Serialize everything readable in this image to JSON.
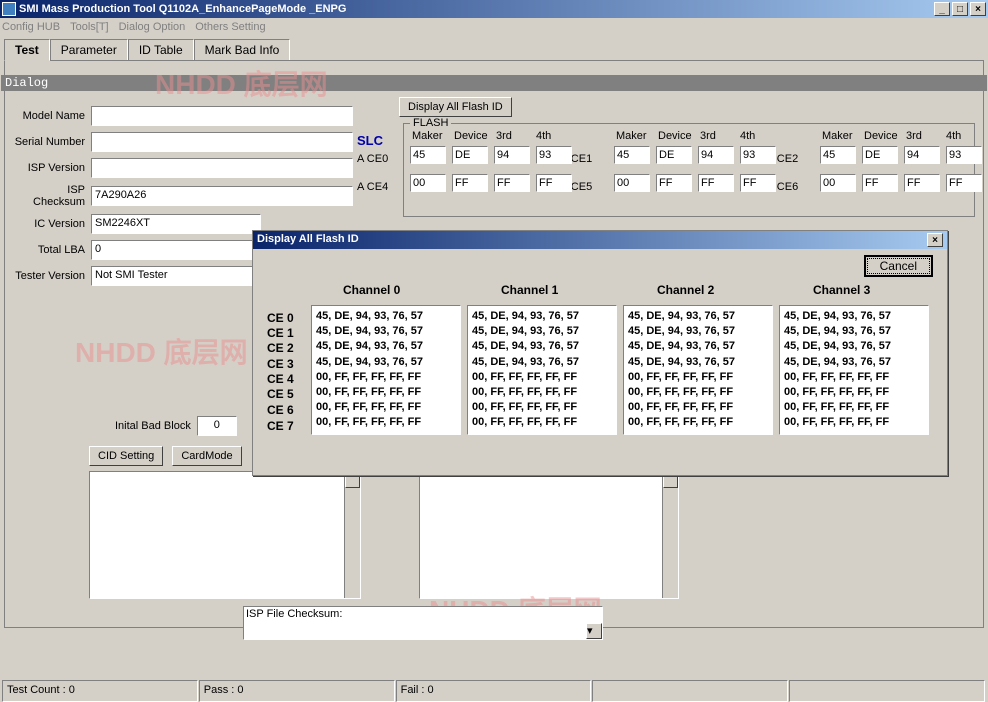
{
  "window": {
    "title": "SMI Mass Production Tool Q1102A_EnhancePageMode     _ENPG"
  },
  "menu": {
    "items": [
      "Config HUB",
      "Tools[T]",
      "Dialog Option",
      "Others Setting"
    ]
  },
  "tabs": {
    "items": [
      "Test",
      "Parameter",
      "ID Table",
      "Mark Bad Info"
    ],
    "active": 0
  },
  "dialog_bar": "Dialog",
  "form": {
    "model_name_lbl": "Model Name",
    "model_name": "",
    "serial_lbl": "Serial Number",
    "serial": "",
    "isp_ver_lbl": "ISP Version",
    "isp_ver": "",
    "isp_chk_lbl": "ISP Checksum",
    "isp_chk": "7A290A26",
    "ic_ver_lbl": "IC Version",
    "ic_ver": "SM2246XT",
    "lba_lbl": "Total LBA",
    "lba": "0",
    "tester_lbl": "Tester Version",
    "tester": "Not SMI Tester"
  },
  "slc": "SLC",
  "ace_labels": [
    "A CE0",
    "A CE4",
    "A CE1",
    "A CE5",
    "A CE2",
    "A CE6"
  ],
  "display_btn": "Display All Flash ID",
  "flash": {
    "legend": "FLASH",
    "headers": [
      "Maker",
      "Device",
      "3rd",
      "4th"
    ],
    "row0": [
      "45",
      "DE",
      "94",
      "93",
      "45",
      "DE",
      "94",
      "93",
      "45",
      "DE",
      "94",
      "93"
    ],
    "row1": [
      "00",
      "FF",
      "FF",
      "FF",
      "00",
      "FF",
      "FF",
      "FF",
      "00",
      "FF",
      "FF",
      "FF"
    ]
  },
  "inital": {
    "lbl": "Inital Bad Block",
    "val": "0"
  },
  "cid_setting": "CID Setting",
  "card_mode": "CardMode",
  "isp_text": "ISP File Checksum:",
  "status": {
    "test_count": "Test Count : 0",
    "pass": "Pass : 0",
    "fail": "Fail : 0"
  },
  "modal": {
    "title": "Display All Flash ID",
    "cancel": "Cancel",
    "channels": [
      "Channel 0",
      "Channel 1",
      "Channel 2",
      "Channel 3"
    ],
    "ce": [
      "CE 0",
      "CE 1",
      "CE 2",
      "CE 3",
      "CE 4",
      "CE 5",
      "CE 6",
      "CE 7"
    ],
    "data": [
      [
        "45, DE, 94, 93, 76, 57",
        "45, DE, 94, 93, 76, 57",
        "45, DE, 94, 93, 76, 57",
        "45, DE, 94, 93, 76, 57",
        "00, FF, FF, FF, FF, FF",
        "00, FF, FF, FF, FF, FF",
        "00, FF, FF, FF, FF, FF",
        "00, FF, FF, FF, FF, FF"
      ],
      [
        "45, DE, 94, 93, 76, 57",
        "45, DE, 94, 93, 76, 57",
        "45, DE, 94, 93, 76, 57",
        "45, DE, 94, 93, 76, 57",
        "00, FF, FF, FF, FF, FF",
        "00, FF, FF, FF, FF, FF",
        "00, FF, FF, FF, FF, FF",
        "00, FF, FF, FF, FF, FF"
      ],
      [
        "45, DE, 94, 93, 76, 57",
        "45, DE, 94, 93, 76, 57",
        "45, DE, 94, 93, 76, 57",
        "45, DE, 94, 93, 76, 57",
        "00, FF, FF, FF, FF, FF",
        "00, FF, FF, FF, FF, FF",
        "00, FF, FF, FF, FF, FF",
        "00, FF, FF, FF, FF, FF"
      ],
      [
        "45, DE, 94, 93, 76, 57",
        "45, DE, 94, 93, 76, 57",
        "45, DE, 94, 93, 76, 57",
        "45, DE, 94, 93, 76, 57",
        "00, FF, FF, FF, FF, FF",
        "00, FF, FF, FF, FF, FF",
        "00, FF, FF, FF, FF, FF",
        "00, FF, FF, FF, FF, FF"
      ]
    ]
  },
  "watermarks": [
    "NHDD 底层网",
    "NHDD 底层网",
    "NHDD 底层网"
  ]
}
